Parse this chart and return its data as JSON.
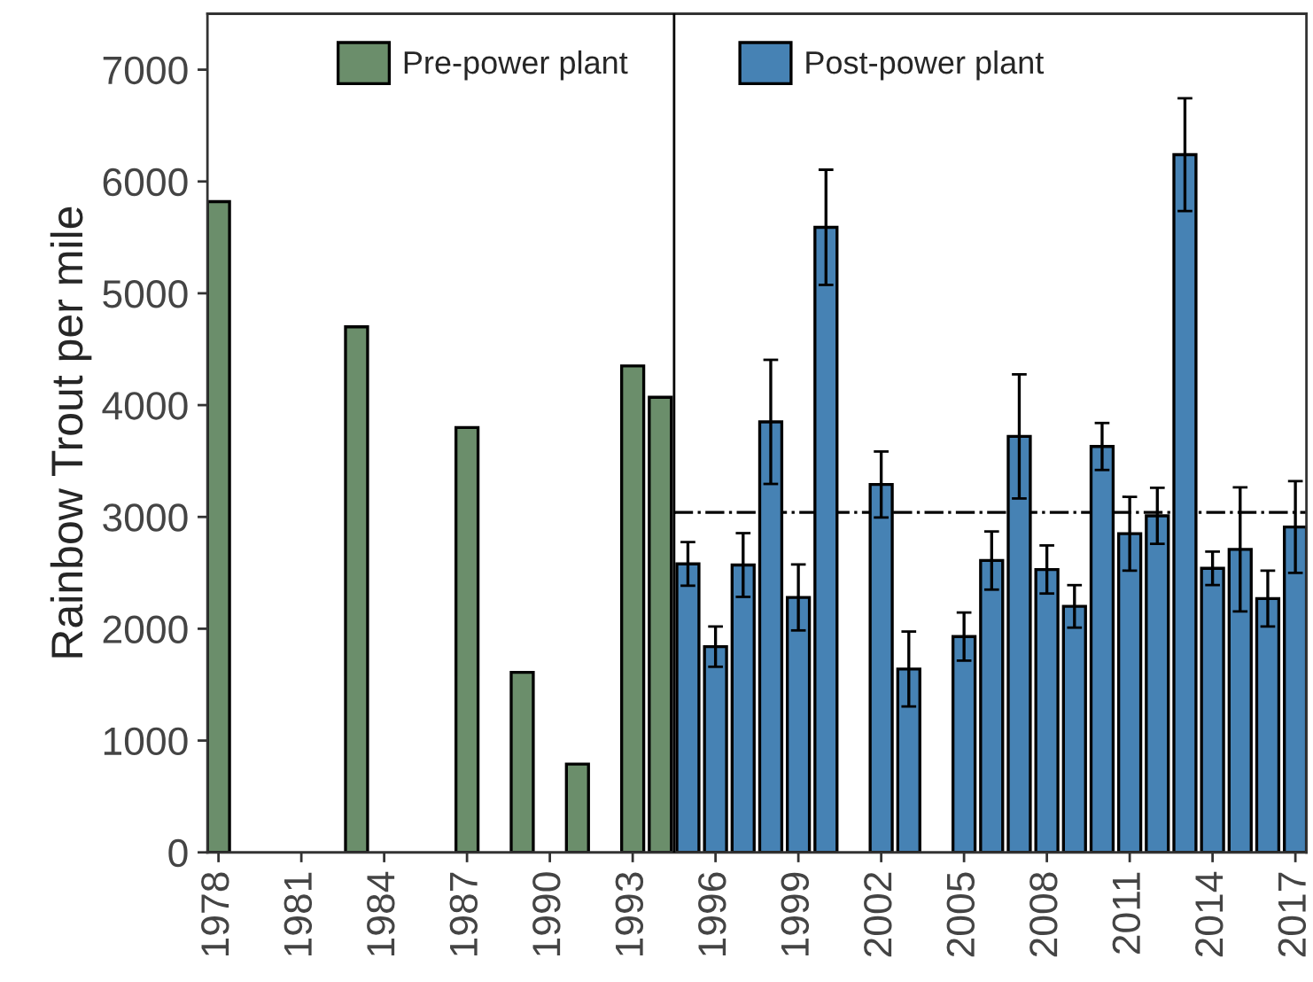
{
  "chart_data": {
    "type": "bar",
    "ylabel": "Rainbow Trout per mile",
    "series": [
      {
        "name": "Pre-power plant",
        "color": "#6b8e6b",
        "x": [
          1978,
          1983,
          1987,
          1989,
          1991,
          1993,
          1994
        ],
        "values": [
          5820,
          4700,
          3800,
          1610,
          790,
          4350,
          4070
        ]
      },
      {
        "name": "Post-power plant",
        "color": "#4682b4",
        "x": [
          1995,
          1996,
          1997,
          1998,
          1999,
          2000,
          2002,
          2003,
          2005,
          2006,
          2007,
          2008,
          2009,
          2010,
          2011,
          2012,
          2013,
          2014,
          2015,
          2016,
          2017
        ],
        "values": [
          2580,
          1840,
          2570,
          3850,
          2280,
          5590,
          3290,
          1640,
          1930,
          2610,
          3720,
          2530,
          2200,
          3630,
          2850,
          3010,
          6240,
          2540,
          2710,
          2270,
          2910
        ],
        "errors": [
          195,
          180,
          285,
          555,
          295,
          515,
          295,
          335,
          215,
          260,
          555,
          215,
          190,
          210,
          330,
          250,
          505,
          150,
          555,
          250,
          410
        ]
      }
    ],
    "xlim": [
      1977.6,
      2017.4
    ],
    "xticks": [
      1978,
      1981,
      1984,
      1987,
      1990,
      1993,
      1996,
      1999,
      2002,
      2005,
      2008,
      2011,
      2014,
      2017
    ],
    "ylim": [
      0,
      7500
    ],
    "yticks": [
      0,
      1000,
      2000,
      3000,
      4000,
      5000,
      6000,
      7000
    ],
    "ref_lines": [
      {
        "axis": "x",
        "value": 1994.5,
        "color": "#000000",
        "line_style": "solid"
      },
      {
        "axis": "y",
        "value": 3040,
        "color": "#000000",
        "line_style": "dashdot"
      }
    ],
    "grid": false,
    "legend": "top"
  }
}
